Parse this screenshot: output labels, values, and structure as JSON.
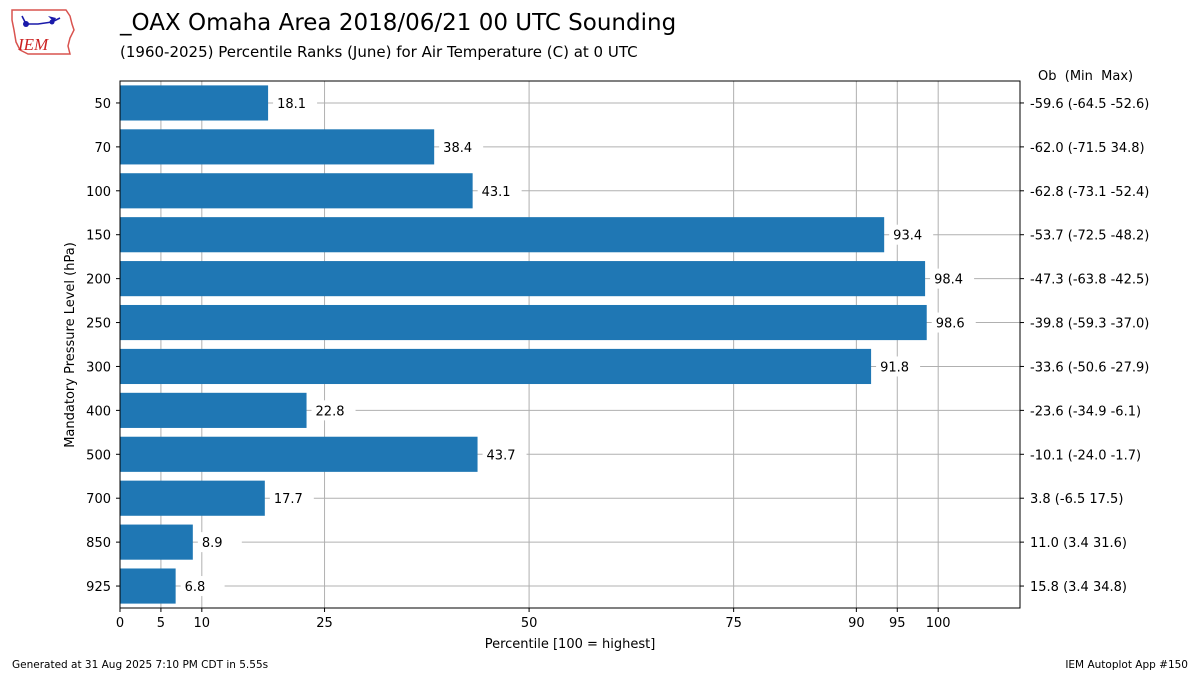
{
  "header": {
    "title": "_OAX Omaha Area  2018/06/21 00 UTC Sounding",
    "subtitle": "(1960-2025) Percentile Ranks (June) for Air Temperature (C) at 0 UTC"
  },
  "logo": {
    "text": "IEM"
  },
  "footer": {
    "generated": "Generated at 31 Aug 2025 7:10 PM CDT in 5.55s",
    "app": "IEM Autoplot App #150"
  },
  "chart_data": {
    "type": "bar",
    "orientation": "horizontal",
    "xlabel": "Percentile [100 = highest]",
    "ylabel": "Mandatory Pressure Level (hPa)",
    "right_header": "Ob  (Min  Max)",
    "xlim": [
      0,
      110
    ],
    "xticks": [
      0,
      5,
      10,
      25,
      50,
      75,
      90,
      95,
      100
    ],
    "grid": true,
    "bar_color": "#1f77b4",
    "categories": [
      "50",
      "70",
      "100",
      "150",
      "200",
      "250",
      "300",
      "400",
      "500",
      "700",
      "850",
      "925"
    ],
    "values": [
      18.1,
      38.4,
      43.1,
      93.4,
      98.4,
      98.6,
      91.8,
      22.8,
      43.7,
      17.7,
      8.9,
      6.8
    ],
    "value_labels": [
      "18.1",
      "38.4",
      "43.1",
      "93.4",
      "98.4",
      "98.6",
      "91.8",
      "22.8",
      "43.7",
      "17.7",
      "8.9",
      "6.8"
    ],
    "right_labels": [
      "-59.6 (-64.5 -52.6)",
      "-62.0 (-71.5 34.8)",
      "-62.8 (-73.1 -52.4)",
      "-53.7 (-72.5 -48.2)",
      "-47.3 (-63.8 -42.5)",
      "-39.8 (-59.3 -37.0)",
      "-33.6 (-50.6 -27.9)",
      "-23.6 (-34.9 -6.1)",
      "-10.1 (-24.0 -1.7)",
      "3.8 (-6.5 17.5)",
      "11.0 (3.4 31.6)",
      "15.8 (3.4 34.8)"
    ]
  }
}
